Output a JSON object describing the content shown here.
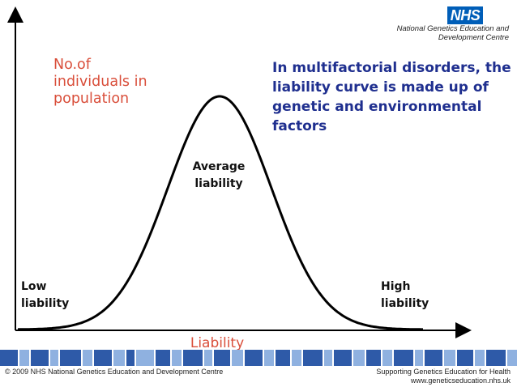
{
  "header": {
    "logo_text": "NHS",
    "org_line1": "National Genetics Education and",
    "org_line2": "Development Centre"
  },
  "diagram": {
    "y_label_lines": [
      "No.of",
      "individuals in",
      "population"
    ],
    "headline_lines": [
      "In multifactorial disorders, the",
      "liability curve is made up of",
      "genetic and environmental",
      "factors"
    ],
    "center_label_lines": [
      "Average",
      "liability"
    ],
    "low_label_lines": [
      "Low",
      "liability"
    ],
    "high_label_lines": [
      "High",
      "liability"
    ],
    "x_label": "Liability",
    "colors": {
      "label_red": "#d94e3a",
      "headline_blue": "#1f2f8f",
      "stripe_dark": "#2e5aa8",
      "stripe_light": "#8fb1e0"
    }
  },
  "footer": {
    "copyright": "© 2009 NHS National Genetics Education and Development Centre",
    "tagline": "Supporting Genetics Education for Health",
    "website": "www.geneticseducation.nhs.uk"
  }
}
